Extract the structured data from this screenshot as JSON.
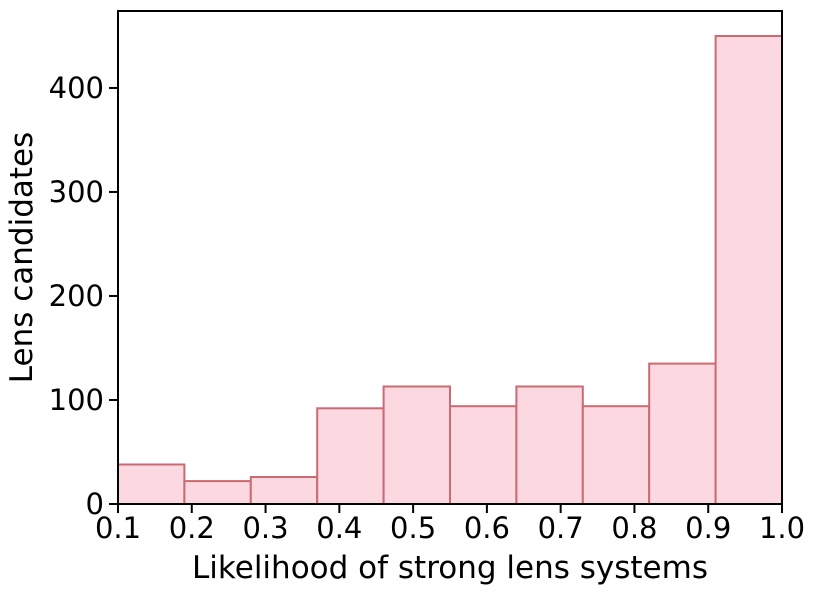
{
  "figure": {
    "background": "#ffffff"
  },
  "chart_data": {
    "type": "bar",
    "kind": "histogram",
    "title": "",
    "xlabel": "Likelihood of strong lens systems",
    "ylabel": "Lens candidates",
    "bin_edges": [
      0.1,
      0.19,
      0.28,
      0.37,
      0.46,
      0.55,
      0.64,
      0.73,
      0.82,
      0.91,
      1.0
    ],
    "values": [
      38,
      22,
      26,
      92,
      113,
      94,
      113,
      94,
      135,
      450
    ],
    "x_ticks": [
      0.1,
      0.2,
      0.3,
      0.4,
      0.5,
      0.6,
      0.7,
      0.8,
      0.9,
      1.0
    ],
    "x_tick_labels": [
      "0.1",
      "0.2",
      "0.3",
      "0.4",
      "0.5",
      "0.6",
      "0.7",
      "0.8",
      "0.9",
      "1.0"
    ],
    "y_ticks": [
      0,
      100,
      200,
      300,
      400
    ],
    "y_tick_labels": [
      "0",
      "100",
      "200",
      "300",
      "400"
    ],
    "xlim": [
      0.1,
      1.0
    ],
    "ylim": [
      0,
      474
    ],
    "grid": false,
    "legend": null,
    "colors": {
      "bar_fill": "#fcd9e0",
      "bar_edge": "#cb6a72",
      "axis": "#000000",
      "text": "#000000"
    }
  }
}
